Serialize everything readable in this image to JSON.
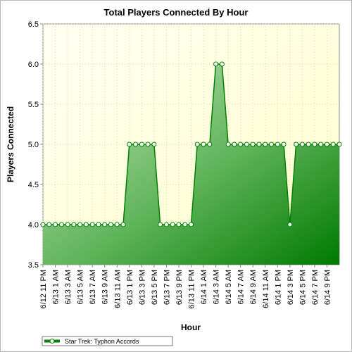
{
  "chart_data": {
    "type": "area",
    "title": "Total Players Connected By Hour",
    "xlabel": "Hour",
    "ylabel": "Players Connected",
    "ylim": [
      3.5,
      6.5
    ],
    "yticks": [
      "3.5",
      "4.0",
      "4.5",
      "5.0",
      "5.5",
      "6.0",
      "6.5"
    ],
    "grid": true,
    "legend_position": "bottom-left",
    "x_tick_labels": [
      "6/12 11 PM",
      "6/13 1 AM",
      "6/13 3 AM",
      "6/13 5 AM",
      "6/13 7 AM",
      "6/13 9 AM",
      "6/13 11 AM",
      "6/13 1 PM",
      "6/13 3 PM",
      "6/13 5 PM",
      "6/13 7 PM",
      "6/13 9 PM",
      "6/13 11 PM",
      "6/14 1 AM",
      "6/14 3 AM",
      "6/14 5 AM",
      "6/14 7 AM",
      "6/14 9 AM",
      "6/14 11 AM",
      "6/14 1 PM",
      "6/14 3 PM",
      "6/14 5 PM",
      "6/14 7 PM",
      "6/14 9 PM"
    ],
    "x_start": "6/12 11 PM",
    "series": [
      {
        "name": "Star Trek: Typhon Accords",
        "color": "#008000",
        "values": [
          4,
          4,
          4,
          4,
          4,
          4,
          4,
          4,
          4,
          4,
          4,
          4,
          4,
          4,
          5,
          5,
          5,
          5,
          5,
          4,
          4,
          4,
          4,
          4,
          4,
          5,
          5,
          5,
          6,
          6,
          5,
          5,
          5,
          5,
          5,
          5,
          5,
          5,
          5,
          5,
          4,
          5,
          5,
          5,
          5,
          5,
          5,
          5,
          5
        ]
      }
    ]
  }
}
